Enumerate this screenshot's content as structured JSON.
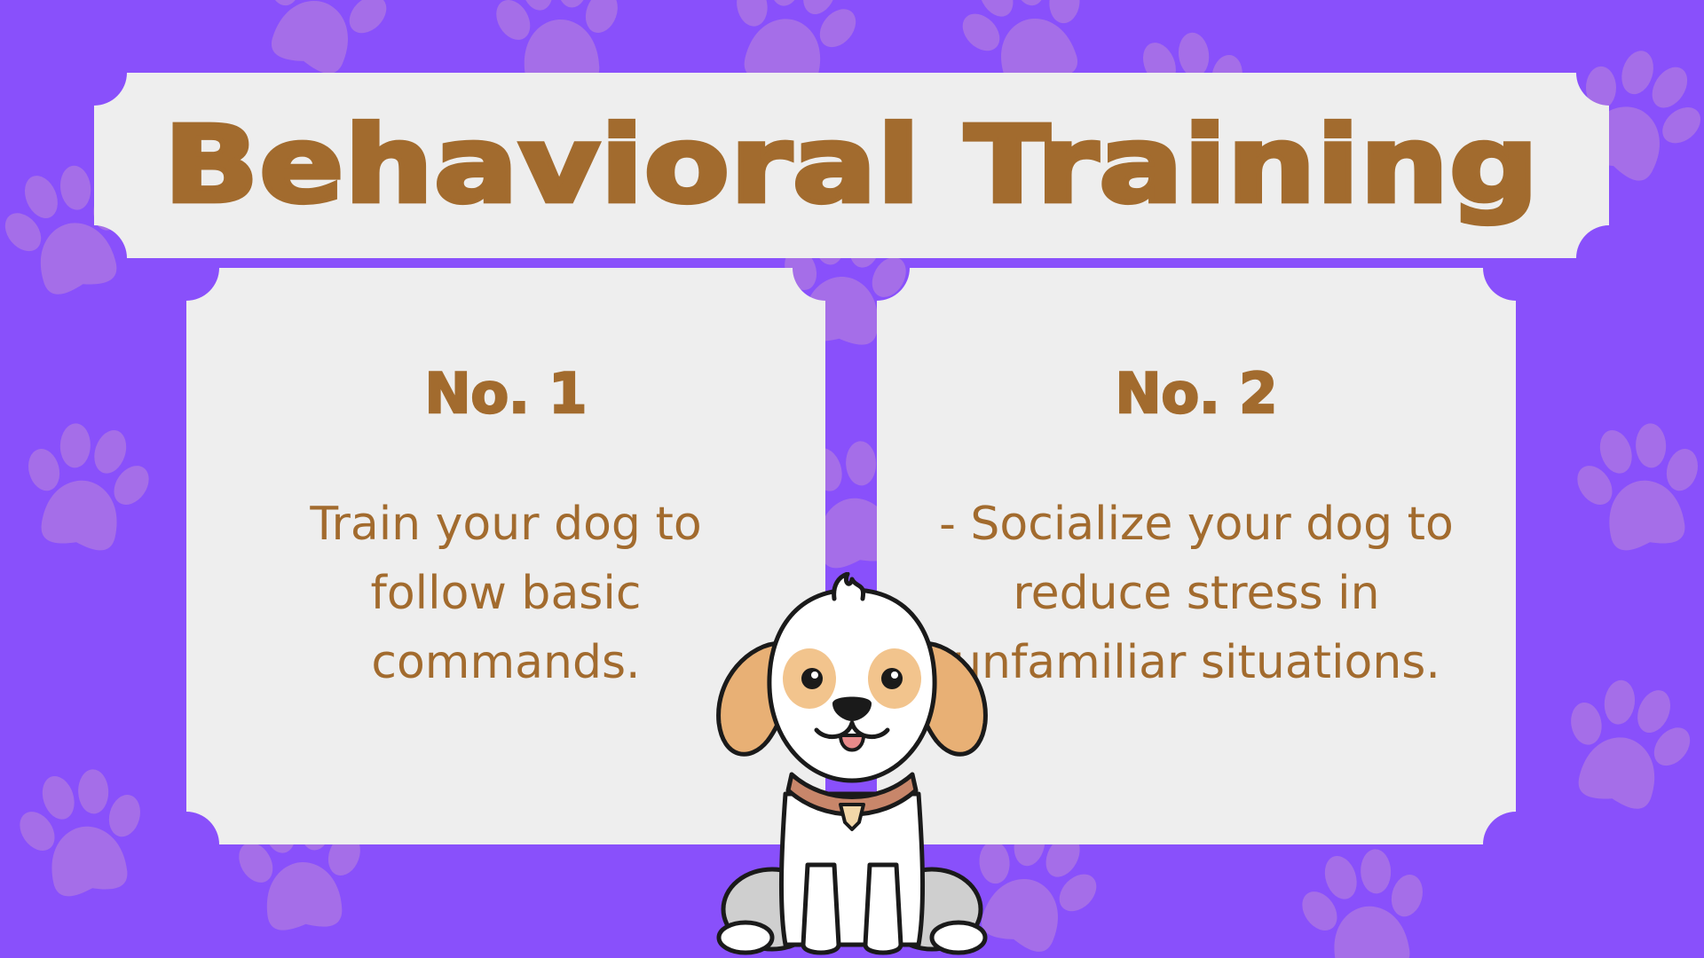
{
  "title": "Behavioral Training",
  "cards": [
    {
      "heading": "No. 1",
      "text": "Train your dog to follow basic commands."
    },
    {
      "heading": "No. 2",
      "text": "- Socialize your dog to reduce stress in unfamiliar situations."
    }
  ],
  "colors": {
    "background": "#8950fb",
    "paw": "#a56ee8",
    "card": "#eeeeee",
    "text": "#a26b2e"
  },
  "icons": {
    "background_pattern": "paw-print-icon",
    "illustration": "puppy-illustration"
  }
}
